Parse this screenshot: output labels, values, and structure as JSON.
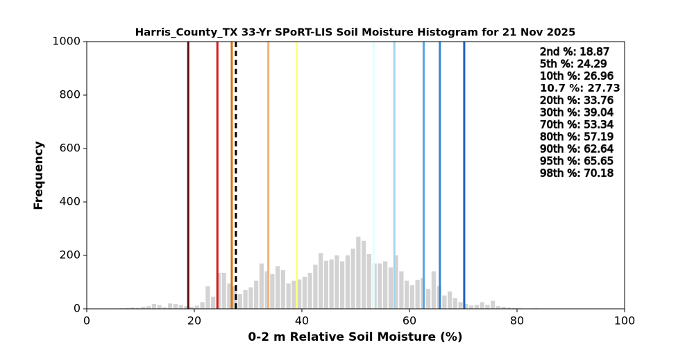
{
  "chart_data": {
    "type": "histogram",
    "title": "Harris_County_TX 33-Yr SPoRT-LIS Soil Moisture Histogram for 21 Nov 2025",
    "xlabel": "0-2 m Relative Soil Moisture (%)",
    "ylabel": "Frequency",
    "bins": [
      6,
      7,
      8,
      9,
      10,
      11,
      12,
      13,
      14,
      15,
      16,
      17,
      18,
      19,
      20,
      21,
      22,
      23,
      24,
      25,
      26,
      27,
      28,
      29,
      30,
      31,
      32,
      33,
      34,
      35,
      36,
      37,
      38,
      39,
      40,
      41,
      42,
      43,
      44,
      45,
      46,
      47,
      48,
      49,
      50,
      51,
      52,
      53,
      54,
      55,
      56,
      57,
      58,
      59,
      60,
      61,
      62,
      63,
      64,
      65,
      66,
      67,
      68,
      69,
      70,
      71,
      72,
      73,
      74,
      75,
      76,
      77,
      78,
      79,
      80,
      81,
      82,
      83,
      84
    ],
    "values": [
      2,
      3,
      5,
      4,
      8,
      10,
      18,
      14,
      6,
      20,
      18,
      14,
      10,
      8,
      12,
      25,
      85,
      45,
      135,
      135,
      95,
      85,
      55,
      70,
      80,
      105,
      170,
      140,
      130,
      160,
      145,
      95,
      105,
      110,
      120,
      135,
      165,
      208,
      180,
      185,
      200,
      178,
      200,
      225,
      270,
      255,
      205,
      170,
      170,
      178,
      155,
      200,
      140,
      105,
      88,
      108,
      115,
      75,
      140,
      85,
      50,
      65,
      40,
      25,
      18,
      12,
      15,
      25,
      15,
      30,
      10,
      8,
      5,
      3,
      2,
      1,
      1,
      2
    ],
    "color": "#d3d3d3",
    "xlim": [
      0,
      100
    ],
    "xticks": [
      0,
      20,
      40,
      60,
      80,
      100
    ],
    "ylim": [
      0,
      1000
    ],
    "yticks": [
      0,
      200,
      400,
      600,
      800,
      1000
    ],
    "percentiles": [
      {
        "label": "2nd %: 18.87",
        "value": 18.87,
        "color": "#5c0d0d"
      },
      {
        "label": "5th %: 24.29",
        "value": 24.29,
        "color": "#d7191c"
      },
      {
        "label": "10th %: 26.96",
        "value": 26.96,
        "color": "#d4760f"
      },
      {
        "label": "10.7 %: 27.73",
        "value": 27.73,
        "color": "#000000",
        "dashed": true
      },
      {
        "label": "20th %: 33.76",
        "value": 33.76,
        "color": "#f7b27a"
      },
      {
        "label": "30th %: 39.04",
        "value": 39.04,
        "color": "#ffff80"
      },
      {
        "label": "70th %: 53.34",
        "value": 53.34,
        "color": "#e0ffff"
      },
      {
        "label": "80th %: 57.19",
        "value": 57.19,
        "color": "#a6d4ee"
      },
      {
        "label": "90th %: 62.64",
        "value": 62.64,
        "color": "#5aa7e0"
      },
      {
        "label": "95th %: 65.65",
        "value": 65.65,
        "color": "#3584d0"
      },
      {
        "label": "98th %: 70.18",
        "value": 70.18,
        "color": "#1f5fbf"
      }
    ]
  }
}
